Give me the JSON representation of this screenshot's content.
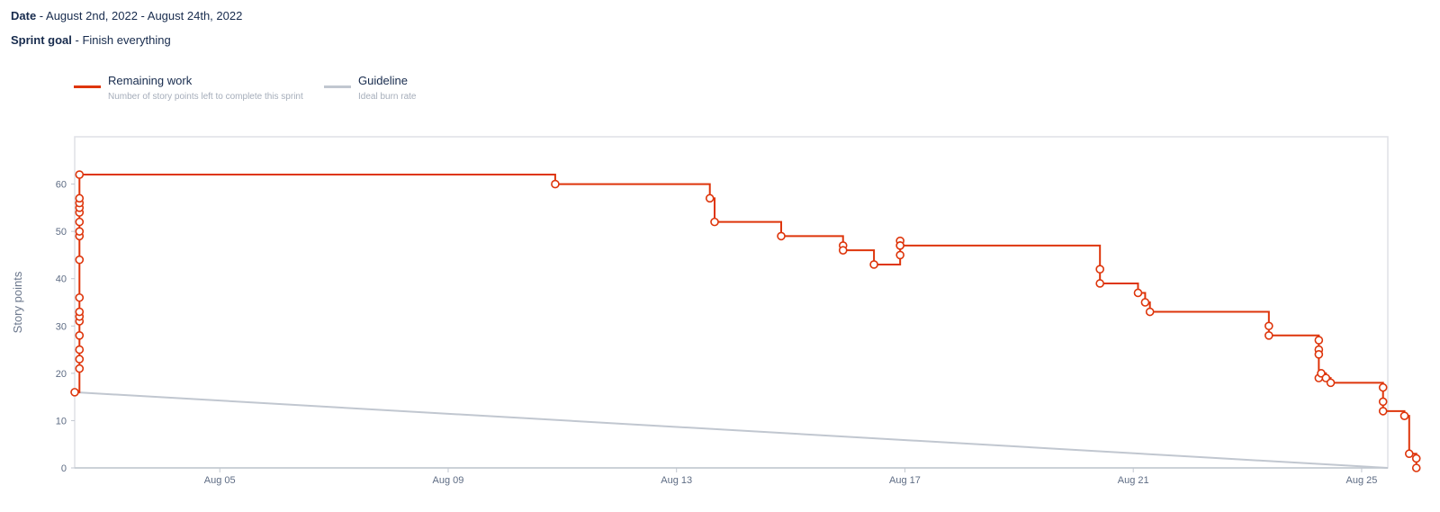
{
  "header": {
    "date_label": "Date",
    "date_value": "August 2nd, 2022 - August 24th, 2022",
    "goal_label": "Sprint goal",
    "goal_value": "Finish everything",
    "separator": " - "
  },
  "legend": {
    "remaining": {
      "title": "Remaining work",
      "description": "Number of story points left to complete this sprint",
      "color": "#de350b"
    },
    "guideline": {
      "title": "Guideline",
      "description": "Ideal burn rate",
      "color": "#c1c7d0"
    }
  },
  "chart_data": {
    "type": "line",
    "ylabel": "Story points",
    "ylim": [
      0,
      70
    ],
    "xlim": [
      "2022-08-02T11:00",
      "2022-08-25T11:00"
    ],
    "yticks": [
      0,
      10,
      20,
      30,
      40,
      50,
      60
    ],
    "xticks": [
      {
        "date": "2022-08-05",
        "label": "Aug 05"
      },
      {
        "date": "2022-08-09",
        "label": "Aug 09"
      },
      {
        "date": "2022-08-13",
        "label": "Aug 13"
      },
      {
        "date": "2022-08-17",
        "label": "Aug 17"
      },
      {
        "date": "2022-08-21",
        "label": "Aug 21"
      },
      {
        "date": "2022-08-25",
        "label": "Aug 25"
      }
    ],
    "grid": false,
    "legend_position": "top-left",
    "series": [
      {
        "name": "Remaining work",
        "step": true,
        "points": [
          [
            "2022-08-02T11:00",
            16
          ],
          [
            "2022-08-02T13:00",
            21
          ],
          [
            "2022-08-02T13:00",
            23
          ],
          [
            "2022-08-02T13:00",
            25
          ],
          [
            "2022-08-02T13:00",
            28
          ],
          [
            "2022-08-02T13:00",
            31
          ],
          [
            "2022-08-02T13:00",
            32
          ],
          [
            "2022-08-02T13:00",
            33
          ],
          [
            "2022-08-02T13:00",
            36
          ],
          [
            "2022-08-02T13:00",
            44
          ],
          [
            "2022-08-02T13:00",
            49
          ],
          [
            "2022-08-02T13:00",
            50
          ],
          [
            "2022-08-02T13:00",
            52
          ],
          [
            "2022-08-02T13:00",
            54
          ],
          [
            "2022-08-02T13:00",
            55
          ],
          [
            "2022-08-02T13:00",
            56
          ],
          [
            "2022-08-02T13:00",
            57
          ],
          [
            "2022-08-02T13:00",
            62
          ],
          [
            "2022-08-10T21:00",
            60
          ],
          [
            "2022-08-13T14:00",
            57
          ],
          [
            "2022-08-13T16:00",
            52
          ],
          [
            "2022-08-14T20:00",
            49
          ],
          [
            "2022-08-15T22:00",
            47
          ],
          [
            "2022-08-15T22:00",
            46
          ],
          [
            "2022-08-16T11:00",
            43
          ],
          [
            "2022-08-16T22:00",
            48
          ],
          [
            "2022-08-16T22:00",
            47
          ],
          [
            "2022-08-16T22:00",
            45
          ],
          [
            "2022-08-16T22:00",
            47
          ],
          [
            "2022-08-20T10:00",
            42
          ],
          [
            "2022-08-20T10:00",
            39
          ],
          [
            "2022-08-21T02:00",
            37
          ],
          [
            "2022-08-21T05:00",
            35
          ],
          [
            "2022-08-21T07:00",
            33
          ],
          [
            "2022-08-23T09:00",
            30
          ],
          [
            "2022-08-23T09:00",
            28
          ],
          [
            "2022-08-24T06:00",
            27
          ],
          [
            "2022-08-24T06:00",
            25
          ],
          [
            "2022-08-24T06:00",
            24
          ],
          [
            "2022-08-24T06:00",
            19
          ],
          [
            "2022-08-24T07:00",
            20
          ],
          [
            "2022-08-24T09:00",
            19
          ],
          [
            "2022-08-24T11:00",
            18
          ],
          [
            "2022-08-25T09:00",
            17
          ],
          [
            "2022-08-25T09:00",
            14
          ],
          [
            "2022-08-25T09:00",
            12
          ],
          [
            "2022-08-25T18:00",
            11
          ],
          [
            "2022-08-25T20:00",
            3
          ],
          [
            "2022-08-25T23:00",
            2
          ],
          [
            "2022-08-25T23:00",
            0
          ]
        ]
      },
      {
        "name": "Guideline",
        "points": [
          [
            "2022-08-02T11:00",
            16
          ],
          [
            "2022-08-25T11:00",
            0
          ]
        ]
      }
    ]
  }
}
